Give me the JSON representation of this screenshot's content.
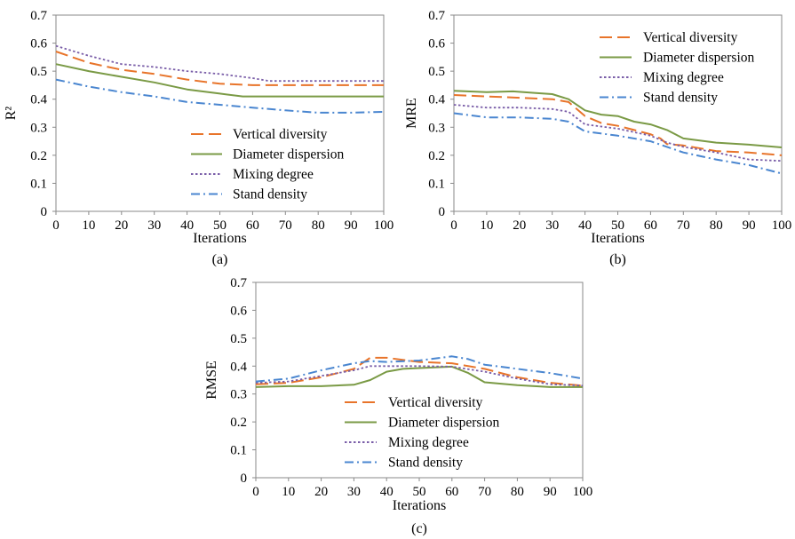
{
  "figure": {
    "panels": [
      {
        "label": "(a)",
        "ylabel": "R²"
      },
      {
        "label": "(b)",
        "ylabel": "MRE"
      },
      {
        "label": "(c)",
        "ylabel": "RMSE"
      }
    ]
  },
  "series_styles": [
    {
      "name": "Vertical diversity",
      "color": "#E8742A",
      "dash": "dashed-long"
    },
    {
      "name": "Diameter dispersion",
      "color": "#7A9A45",
      "dash": "solid"
    },
    {
      "name": "Mixing degree",
      "color": "#7A5EA8",
      "dash": "dotted"
    },
    {
      "name": "Stand density",
      "color": "#4A86D0",
      "dash": "dash-dot"
    }
  ],
  "chart_data": [
    {
      "type": "line",
      "title": "",
      "xlabel": "Iterations",
      "ylabel": "R²",
      "panel_label": "(a)",
      "xlim": [
        0,
        100
      ],
      "ylim": [
        0,
        0.7
      ],
      "xticks": [
        0,
        10,
        20,
        30,
        40,
        50,
        60,
        70,
        80,
        90,
        100
      ],
      "yticks": [
        0,
        0.1,
        0.2,
        0.3,
        0.4,
        0.5,
        0.6,
        0.7
      ],
      "grid": false,
      "legend_position": "bottom-right",
      "series": [
        {
          "name": "Vertical diversity",
          "x": [
            0,
            10,
            20,
            30,
            40,
            50,
            60,
            70,
            80,
            90,
            100
          ],
          "y": [
            0.57,
            0.53,
            0.505,
            0.49,
            0.47,
            0.455,
            0.45,
            0.45,
            0.45,
            0.45,
            0.45
          ]
        },
        {
          "name": "Diameter dispersion",
          "x": [
            0,
            10,
            20,
            30,
            40,
            50,
            57,
            60,
            70,
            80,
            90,
            100
          ],
          "y": [
            0.525,
            0.5,
            0.48,
            0.46,
            0.435,
            0.42,
            0.41,
            0.41,
            0.41,
            0.41,
            0.41,
            0.41
          ]
        },
        {
          "name": "Mixing degree",
          "x": [
            0,
            10,
            20,
            30,
            40,
            50,
            60,
            65,
            70,
            80,
            90,
            100
          ],
          "y": [
            0.59,
            0.555,
            0.525,
            0.515,
            0.5,
            0.49,
            0.475,
            0.465,
            0.465,
            0.465,
            0.465,
            0.465
          ]
        },
        {
          "name": "Stand density",
          "x": [
            0,
            10,
            20,
            30,
            40,
            50,
            60,
            70,
            80,
            90,
            100
          ],
          "y": [
            0.47,
            0.445,
            0.425,
            0.41,
            0.39,
            0.38,
            0.37,
            0.36,
            0.352,
            0.352,
            0.355
          ]
        }
      ]
    },
    {
      "type": "line",
      "title": "",
      "xlabel": "Iterations",
      "ylabel": "MRE",
      "panel_label": "(b)",
      "xlim": [
        0,
        100
      ],
      "ylim": [
        0,
        0.7
      ],
      "xticks": [
        0,
        10,
        20,
        30,
        40,
        50,
        60,
        70,
        80,
        90,
        100
      ],
      "yticks": [
        0,
        0.1,
        0.2,
        0.3,
        0.4,
        0.5,
        0.6,
        0.7
      ],
      "grid": false,
      "legend_position": "top-right",
      "series": [
        {
          "name": "Vertical diversity",
          "x": [
            0,
            10,
            20,
            30,
            35,
            40,
            45,
            50,
            55,
            60,
            63,
            65,
            70,
            80,
            90,
            100
          ],
          "y": [
            0.415,
            0.41,
            0.405,
            0.4,
            0.39,
            0.34,
            0.315,
            0.305,
            0.29,
            0.275,
            0.26,
            0.24,
            0.235,
            0.215,
            0.21,
            0.2
          ]
        },
        {
          "name": "Diameter dispersion",
          "x": [
            0,
            10,
            18,
            25,
            30,
            35,
            40,
            45,
            50,
            55,
            60,
            65,
            70,
            80,
            90,
            100
          ],
          "y": [
            0.43,
            0.425,
            0.428,
            0.422,
            0.418,
            0.4,
            0.36,
            0.345,
            0.34,
            0.32,
            0.31,
            0.29,
            0.26,
            0.245,
            0.238,
            0.228
          ]
        },
        {
          "name": "Mixing degree",
          "x": [
            0,
            10,
            20,
            30,
            35,
            40,
            50,
            60,
            65,
            70,
            80,
            90,
            100
          ],
          "y": [
            0.38,
            0.37,
            0.37,
            0.365,
            0.355,
            0.31,
            0.295,
            0.27,
            0.245,
            0.23,
            0.21,
            0.185,
            0.18
          ]
        },
        {
          "name": "Stand density",
          "x": [
            0,
            10,
            20,
            30,
            35,
            40,
            50,
            60,
            70,
            80,
            90,
            100
          ],
          "y": [
            0.35,
            0.335,
            0.335,
            0.33,
            0.32,
            0.285,
            0.27,
            0.25,
            0.21,
            0.185,
            0.165,
            0.135
          ]
        }
      ]
    },
    {
      "type": "line",
      "title": "",
      "xlabel": "Iterations",
      "ylabel": "RMSE",
      "panel_label": "(c)",
      "xlim": [
        0,
        100
      ],
      "ylim": [
        0,
        0.7
      ],
      "xticks": [
        0,
        10,
        20,
        30,
        40,
        50,
        60,
        70,
        80,
        90,
        100
      ],
      "yticks": [
        0,
        0.1,
        0.2,
        0.3,
        0.4,
        0.5,
        0.6,
        0.7
      ],
      "grid": false,
      "legend_position": "bottom-center",
      "series": [
        {
          "name": "Vertical diversity",
          "x": [
            0,
            10,
            20,
            30,
            35,
            40,
            50,
            60,
            70,
            80,
            90,
            100
          ],
          "y": [
            0.335,
            0.34,
            0.36,
            0.39,
            0.43,
            0.43,
            0.415,
            0.41,
            0.39,
            0.36,
            0.34,
            0.33
          ]
        },
        {
          "name": "Diameter dispersion",
          "x": [
            0,
            10,
            20,
            30,
            35,
            40,
            45,
            50,
            60,
            65,
            70,
            80,
            90,
            100
          ],
          "y": [
            0.325,
            0.328,
            0.328,
            0.333,
            0.35,
            0.38,
            0.39,
            0.393,
            0.398,
            0.375,
            0.342,
            0.332,
            0.325,
            0.325
          ]
        },
        {
          "name": "Mixing degree",
          "x": [
            0,
            10,
            20,
            30,
            35,
            40,
            50,
            60,
            70,
            80,
            90,
            100
          ],
          "y": [
            0.34,
            0.345,
            0.365,
            0.385,
            0.4,
            0.4,
            0.4,
            0.398,
            0.38,
            0.355,
            0.335,
            0.33
          ]
        },
        {
          "name": "Stand density",
          "x": [
            0,
            10,
            20,
            30,
            35,
            40,
            50,
            60,
            65,
            70,
            80,
            90,
            100
          ],
          "y": [
            0.345,
            0.355,
            0.385,
            0.41,
            0.418,
            0.415,
            0.42,
            0.435,
            0.425,
            0.405,
            0.39,
            0.375,
            0.355
          ]
        }
      ]
    }
  ]
}
